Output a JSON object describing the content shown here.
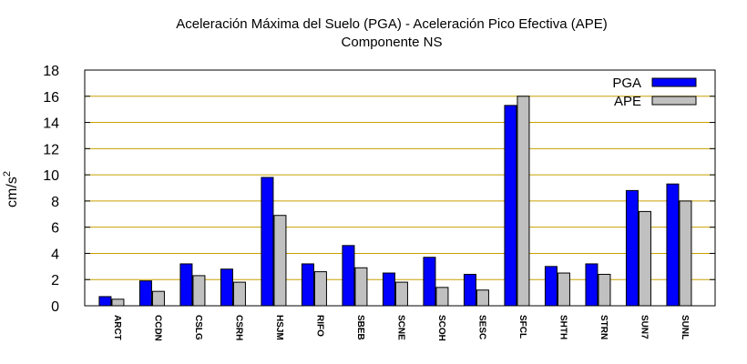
{
  "chart_data": {
    "type": "bar",
    "title": "Aceleración Máxima del Suelo (PGA) -  Aceleración Pico Efectiva (APE)",
    "subtitle": "Componente NS",
    "xlabel": "",
    "ylabel": "cm/s",
    "ylabel_sup": "2",
    "ylim": [
      0,
      18
    ],
    "yticks": [
      0,
      2,
      4,
      6,
      8,
      10,
      12,
      14,
      16,
      18
    ],
    "grid": true,
    "legend_position": "top-right",
    "categories": [
      "ARCT",
      "CCDN",
      "CSLG",
      "CSRH",
      "HSJM",
      "RIFO",
      "SBEB",
      "SCNE",
      "SCOH",
      "SESC",
      "SFCL",
      "SHTH",
      "STRN",
      "SUN7",
      "SUNL"
    ],
    "series": [
      {
        "name": "PGA",
        "color": "#0000ff",
        "values": [
          0.7,
          1.9,
          3.2,
          2.8,
          9.8,
          3.2,
          4.6,
          2.5,
          3.7,
          2.4,
          15.3,
          3.0,
          3.2,
          8.8,
          9.3
        ]
      },
      {
        "name": "APE",
        "color": "#c0c0c0",
        "values": [
          0.5,
          1.1,
          2.3,
          1.8,
          6.9,
          2.6,
          2.9,
          1.8,
          1.4,
          1.2,
          16.0,
          2.5,
          2.4,
          7.2,
          8.0
        ]
      }
    ]
  }
}
